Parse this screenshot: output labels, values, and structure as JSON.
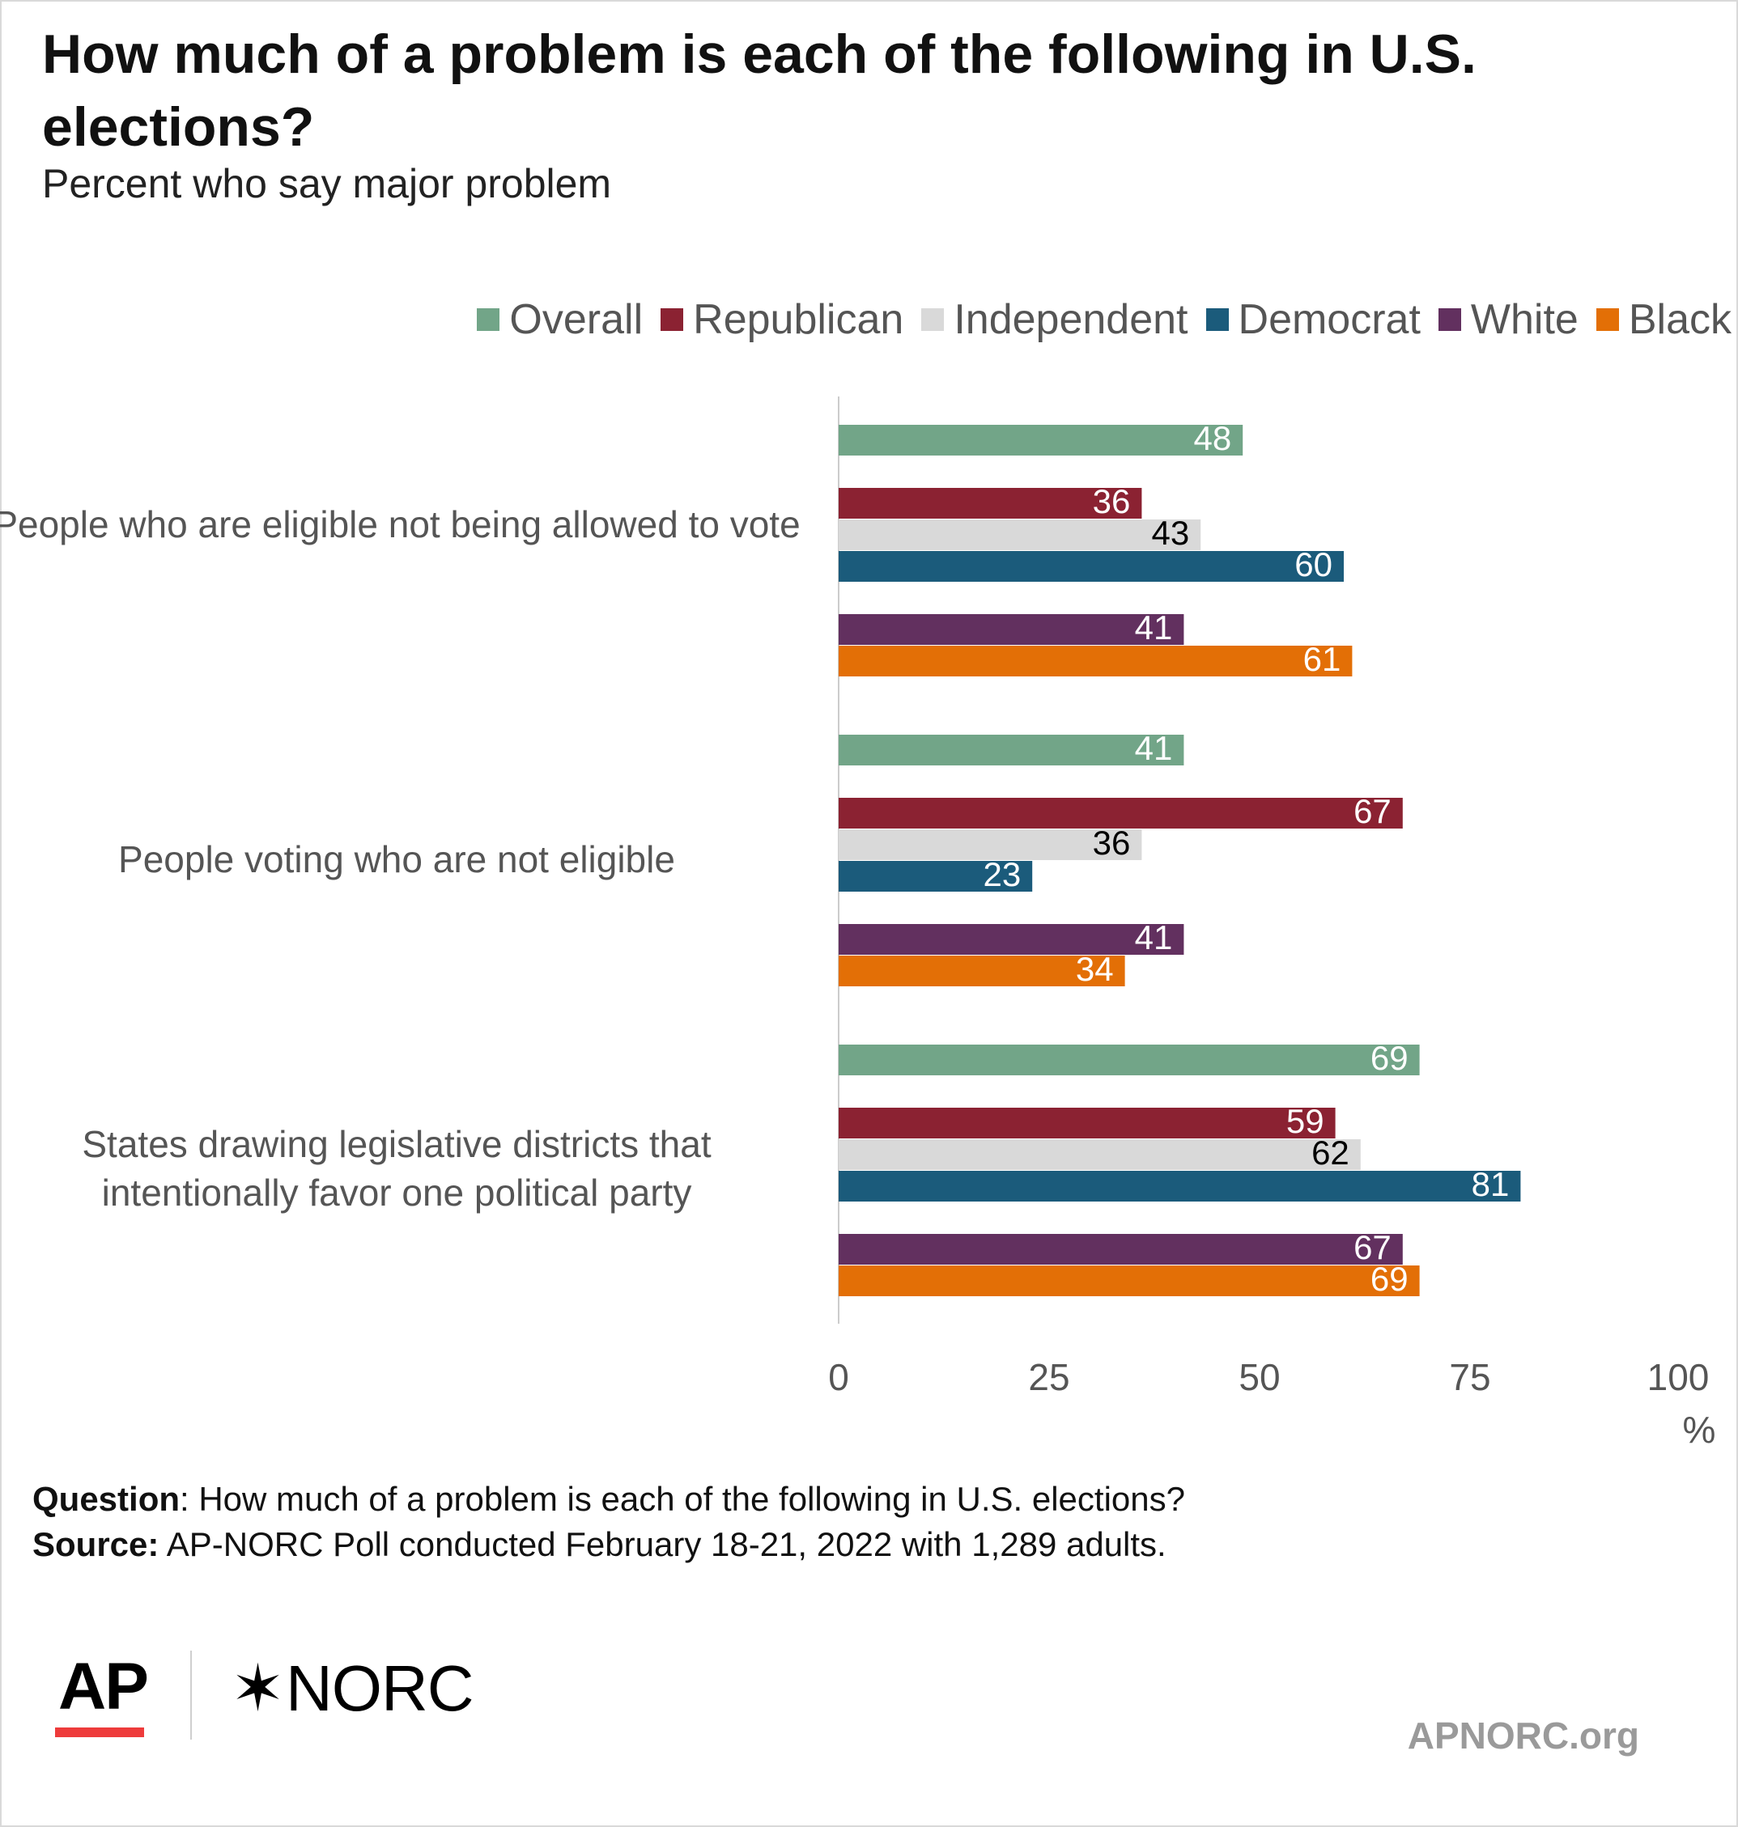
{
  "chart_data": {
    "type": "bar",
    "orientation": "horizontal",
    "title": "How much of a problem is each of the following in U.S. elections?",
    "subtitle": "Percent who say major problem",
    "categories": [
      "People who are eligible not being allowed to vote",
      "People voting who are not eligible",
      "States drawing legislative districts that intentionally favor one political party"
    ],
    "series": [
      {
        "name": "Overall",
        "color": "#72a588",
        "label_color": "#ffffff",
        "values": [
          48,
          41,
          69
        ]
      },
      {
        "name": "Republican",
        "color": "#8b2232",
        "label_color": "#ffffff",
        "values": [
          36,
          67,
          59
        ]
      },
      {
        "name": "Independent",
        "color": "#d9d9d9",
        "label_color": "#000000",
        "values": [
          43,
          36,
          62
        ]
      },
      {
        "name": "Democrat",
        "color": "#1b5b7b",
        "label_color": "#ffffff",
        "values": [
          60,
          23,
          81
        ]
      },
      {
        "name": "White",
        "color": "#62305f",
        "label_color": "#ffffff",
        "values": [
          41,
          41,
          67
        ]
      },
      {
        "name": "Black",
        "color": "#e36f06",
        "label_color": "#ffffff",
        "values": [
          61,
          34,
          69
        ]
      }
    ],
    "x_ticks": [
      "0",
      "25",
      "50",
      "75",
      "100"
    ],
    "x_unit": "%",
    "xlim": [
      0,
      100
    ],
    "grid": false,
    "legend_position": "top-right"
  },
  "footer": {
    "question_label": "Question",
    "question_text": ": How much of a problem is each of the following in U.S. elections?",
    "source_label": "Source:",
    "source_text": " AP-NORC Poll conducted February 18-21, 2022 with 1,289 adults."
  },
  "logos": {
    "ap": "AP",
    "norc_star": "✶",
    "norc": "NORC",
    "site": "APNORC.org"
  }
}
